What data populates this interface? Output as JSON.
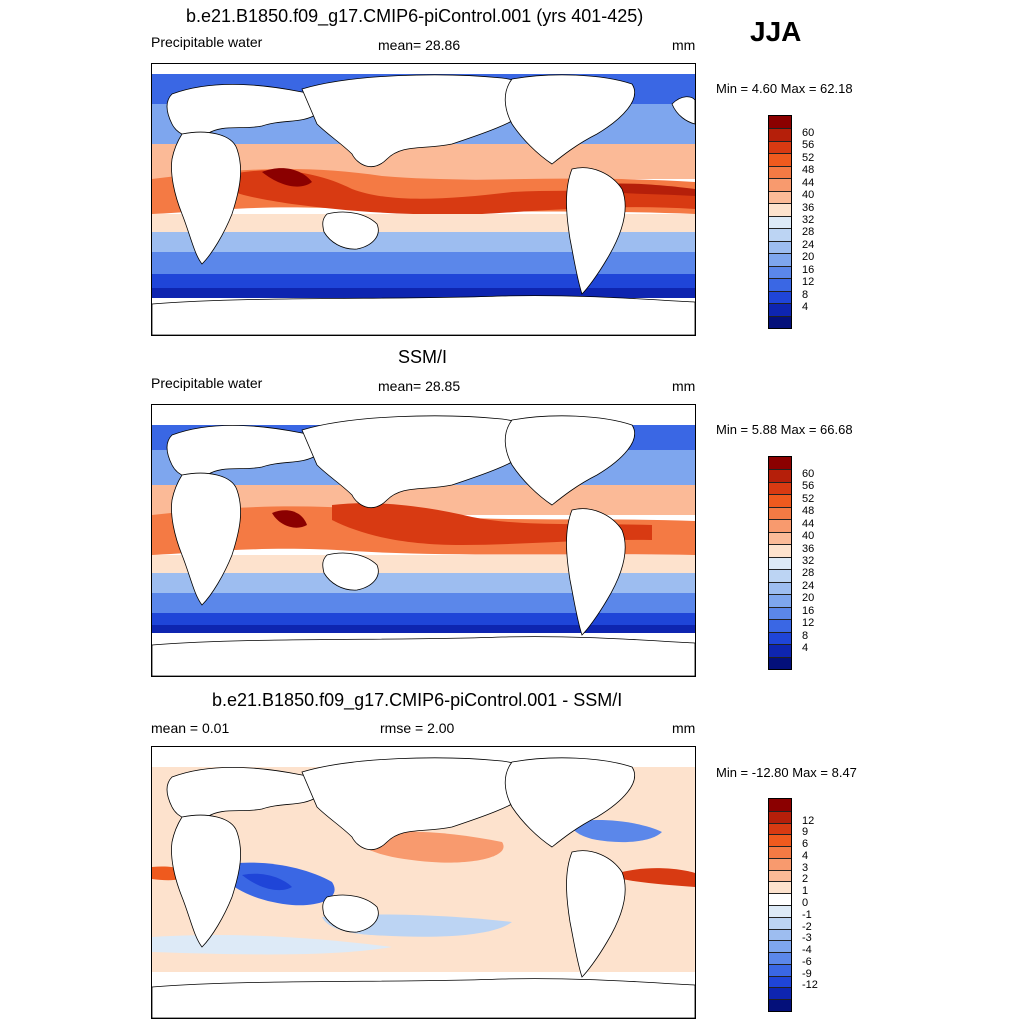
{
  "season": "JJA",
  "panels": [
    {
      "title": "b.e21.B1850.f09_g17.CMIP6-piControl.001 (yrs 401-425)",
      "left_label": "Precipitable water",
      "center_label": "mean=  28.86",
      "right_label": "mm",
      "minmax": "Min =   4.60 Max =  62.18",
      "colorbar": {
        "colors": [
          "#8b0000",
          "#b51f0a",
          "#d83a12",
          "#ef5a1e",
          "#f47a44",
          "#f89a6e",
          "#fbba97",
          "#fde2cd",
          "#ddeaf7",
          "#bcd4f3",
          "#9dbdf0",
          "#7ea6ee",
          "#5b87ea",
          "#3a67e4",
          "#1f45d8",
          "#0e25b0",
          "#04107a"
        ],
        "labels": [
          "60",
          "56",
          "52",
          "48",
          "44",
          "40",
          "36",
          "32",
          "28",
          "24",
          "20",
          "16",
          "12",
          "8",
          "4"
        ]
      }
    },
    {
      "title": "SSM/I",
      "left_label": "Precipitable water",
      "center_label": "mean=  28.85",
      "right_label": "mm",
      "minmax": "Min =   5.88 Max =  66.68",
      "colorbar": {
        "colors": [
          "#8b0000",
          "#b51f0a",
          "#d83a12",
          "#ef5a1e",
          "#f47a44",
          "#f89a6e",
          "#fbba97",
          "#fde2cd",
          "#ddeaf7",
          "#bcd4f3",
          "#9dbdf0",
          "#7ea6ee",
          "#5b87ea",
          "#3a67e4",
          "#1f45d8",
          "#0e25b0",
          "#04107a"
        ],
        "labels": [
          "60",
          "56",
          "52",
          "48",
          "44",
          "40",
          "36",
          "32",
          "28",
          "24",
          "20",
          "16",
          "12",
          "8",
          "4"
        ]
      }
    },
    {
      "title": "b.e21.B1850.f09_g17.CMIP6-piControl.001 - SSM/I",
      "left_label": "mean =   0.01",
      "center_label": "rmse =   2.00",
      "right_label": "mm",
      "minmax": "Min = -12.80 Max =   8.47",
      "colorbar": {
        "colors": [
          "#8b0000",
          "#b51f0a",
          "#d83a12",
          "#ef5a1e",
          "#f47a44",
          "#f89a6e",
          "#fbba97",
          "#fde2cd",
          "#ffffff",
          "#ddeaf7",
          "#bcd4f3",
          "#9dbdf0",
          "#7ea6ee",
          "#5b87ea",
          "#3a67e4",
          "#1f45d8",
          "#0e25b0",
          "#04107a"
        ],
        "labels": [
          "12",
          "9",
          "6",
          "4",
          "3",
          "2",
          "1",
          "0",
          "-1",
          "-2",
          "-3",
          "-4",
          "-6",
          "-9",
          "-12"
        ]
      }
    }
  ]
}
